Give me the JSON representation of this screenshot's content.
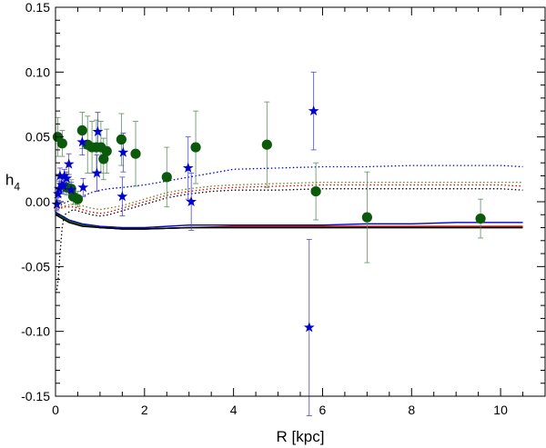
{
  "chart_data": {
    "type": "scatter",
    "title": "",
    "xlabel": "R [kpc]",
    "ylabel": {
      "main": "h",
      "sub": "4"
    },
    "xlim": [
      0,
      11
    ],
    "ylim": [
      -0.15,
      0.15
    ],
    "x_ticks": [
      0,
      2,
      4,
      6,
      8,
      10
    ],
    "x_tick_labels": [
      "0",
      "2",
      "4",
      "6",
      "8",
      "10"
    ],
    "y_ticks": [
      -0.15,
      -0.1,
      -0.05,
      0.0,
      0.05,
      0.1,
      0.15
    ],
    "y_tick_labels": [
      "-0.15",
      "-0.10",
      "-0.05",
      "0.00",
      "0.05",
      "0.10",
      "0.15"
    ],
    "grid": false,
    "colors": {
      "green": "#0b5a0b",
      "blue": "#0000cc",
      "black": "#000000",
      "red": "#cc0000",
      "olive": "#7a7a10"
    },
    "series": [
      {
        "name": "green circles",
        "marker": "circle",
        "color": "#0b5a0b",
        "points": [
          {
            "x": 0.05,
            "y": 0.05,
            "e": 0.015
          },
          {
            "x": 0.15,
            "y": 0.045,
            "e": 0.01
          },
          {
            "x": 0.25,
            "y": 0.011,
            "e": 0.006
          },
          {
            "x": 0.35,
            "y": 0.01,
            "e": 0.007
          },
          {
            "x": 0.4,
            "y": 0.004,
            "e": 0.006
          },
          {
            "x": 0.5,
            "y": 0.002,
            "e": 0.006
          },
          {
            "x": 0.6,
            "y": 0.055,
            "e": 0.014
          },
          {
            "x": 0.72,
            "y": 0.044,
            "e": 0.022
          },
          {
            "x": 0.82,
            "y": 0.042,
            "e": 0.02
          },
          {
            "x": 0.92,
            "y": 0.042,
            "e": 0.021
          },
          {
            "x": 1.02,
            "y": 0.042,
            "e": 0.02
          },
          {
            "x": 1.08,
            "y": 0.033,
            "e": 0.016
          },
          {
            "x": 1.15,
            "y": 0.039,
            "e": 0.017
          },
          {
            "x": 1.48,
            "y": 0.048,
            "e": 0.02
          },
          {
            "x": 1.8,
            "y": 0.037,
            "e": 0.025
          },
          {
            "x": 2.5,
            "y": 0.019,
            "e": 0.023
          },
          {
            "x": 3.15,
            "y": 0.042,
            "e": 0.028
          },
          {
            "x": 4.75,
            "y": 0.044,
            "e": 0.033
          },
          {
            "x": 5.85,
            "y": 0.008,
            "e": 0.022
          },
          {
            "x": 7.0,
            "y": -0.012,
            "e": 0.035
          },
          {
            "x": 9.55,
            "y": -0.013,
            "e": 0.015
          }
        ]
      },
      {
        "name": "blue stars",
        "marker": "star",
        "color": "#0000cc",
        "points": [
          {
            "x": 0.03,
            "y": -0.002,
            "e": 0.005
          },
          {
            "x": 0.06,
            "y": 0.006,
            "e": 0.005
          },
          {
            "x": 0.08,
            "y": 0.01,
            "e": 0.006
          },
          {
            "x": 0.1,
            "y": 0.02,
            "e": 0.006
          },
          {
            "x": 0.14,
            "y": 0.013,
            "e": 0.005
          },
          {
            "x": 0.18,
            "y": 0.012,
            "e": 0.006
          },
          {
            "x": 0.2,
            "y": 0.02,
            "e": 0.005
          },
          {
            "x": 0.25,
            "y": 0.018,
            "e": 0.005
          },
          {
            "x": 0.3,
            "y": 0.029,
            "e": 0.008
          },
          {
            "x": 0.35,
            "y": 0.009,
            "e": 0.006
          },
          {
            "x": 0.6,
            "y": 0.046,
            "e": 0.01
          },
          {
            "x": 0.62,
            "y": 0.011,
            "e": 0.007
          },
          {
            "x": 0.93,
            "y": 0.022,
            "e": 0.014
          },
          {
            "x": 0.95,
            "y": 0.054,
            "e": 0.015
          },
          {
            "x": 1.5,
            "y": 0.004,
            "e": 0.015
          },
          {
            "x": 1.52,
            "y": 0.038,
            "e": 0.015
          },
          {
            "x": 2.98,
            "y": 0.026,
            "e": 0.024
          },
          {
            "x": 3.05,
            "y": 0.0,
            "e": 0.022
          },
          {
            "x": 5.8,
            "y": 0.07,
            "e": 0.03
          },
          {
            "x": 5.7,
            "y": -0.097,
            "e": 0.068
          }
        ]
      }
    ],
    "model_curves": [
      {
        "name": "blue dotted",
        "style": "dotted",
        "color": "#0000cc",
        "x": [
          0.05,
          0.2,
          0.4,
          0.6,
          0.8,
          1.0,
          1.2,
          1.5,
          2.0,
          2.5,
          3.0,
          3.5,
          4.0,
          5.0,
          6.0,
          7.0,
          8.0,
          9.0,
          10.0,
          10.5
        ],
        "y": [
          -0.004,
          -0.001,
          0.002,
          0.004,
          0.007,
          0.009,
          0.01,
          0.011,
          0.013,
          0.016,
          0.019,
          0.022,
          0.025,
          0.026,
          0.027,
          0.027,
          0.028,
          0.028,
          0.028,
          0.027
        ]
      },
      {
        "name": "olive dotted",
        "style": "dotted",
        "color": "#7a7a10",
        "x": [
          0.05,
          0.2,
          0.4,
          0.6,
          0.8,
          1.0,
          1.2,
          1.5,
          2.0,
          2.5,
          3.0,
          3.5,
          4.0,
          5.0,
          6.0,
          7.0,
          8.0,
          9.0,
          10.0,
          10.5
        ],
        "y": [
          -0.005,
          -0.003,
          -0.002,
          -0.003,
          -0.005,
          -0.006,
          -0.005,
          -0.003,
          0.002,
          0.007,
          0.01,
          0.012,
          0.013,
          0.014,
          0.015,
          0.015,
          0.015,
          0.015,
          0.015,
          0.015
        ]
      },
      {
        "name": "red dotted",
        "style": "dotted",
        "color": "#cc0000",
        "x": [
          0.05,
          0.2,
          0.4,
          0.6,
          0.8,
          1.0,
          1.2,
          1.5,
          2.0,
          2.5,
          3.0,
          3.5,
          4.0,
          5.0,
          6.0,
          7.0,
          8.0,
          9.0,
          10.0,
          10.5
        ],
        "y": [
          -0.006,
          -0.004,
          -0.004,
          -0.006,
          -0.008,
          -0.009,
          -0.008,
          -0.005,
          0.0,
          0.005,
          0.008,
          0.01,
          0.011,
          0.012,
          0.013,
          0.013,
          0.013,
          0.013,
          0.013,
          0.012
        ]
      },
      {
        "name": "black dotted",
        "style": "dotted",
        "color": "#000000",
        "x": [
          0.03,
          0.06,
          0.1,
          0.15,
          0.2,
          0.4,
          0.6,
          0.8,
          1.0,
          1.2,
          1.5,
          2.0,
          2.5,
          3.0,
          3.5,
          4.0,
          5.0,
          6.0,
          7.0,
          8.0,
          9.0,
          10.0,
          10.5
        ],
        "y": [
          -0.068,
          -0.06,
          -0.04,
          -0.02,
          -0.01,
          -0.006,
          -0.008,
          -0.01,
          -0.011,
          -0.01,
          -0.007,
          -0.002,
          0.003,
          0.006,
          0.008,
          0.009,
          0.009,
          0.01,
          0.01,
          0.01,
          0.01,
          0.01,
          0.009
        ]
      },
      {
        "name": "blue solid",
        "style": "solid",
        "color": "#0000cc",
        "x": [
          0.0,
          0.3,
          0.6,
          1.0,
          1.5,
          2.0,
          3.0,
          4.0,
          5.0,
          6.0,
          7.0,
          8.0,
          9.0,
          10.0,
          10.5
        ],
        "y": [
          -0.008,
          -0.014,
          -0.017,
          -0.019,
          -0.02,
          -0.02,
          -0.018,
          -0.018,
          -0.018,
          -0.018,
          -0.017,
          -0.017,
          -0.016,
          -0.016,
          -0.016
        ]
      },
      {
        "name": "red solid",
        "style": "solid",
        "color": "#cc0000",
        "x": [
          0.0,
          0.3,
          0.6,
          1.0,
          1.5,
          2.0,
          3.0,
          4.0,
          5.0,
          6.0,
          7.0,
          8.0,
          9.0,
          10.0,
          10.5
        ],
        "y": [
          -0.009,
          -0.015,
          -0.018,
          -0.02,
          -0.021,
          -0.021,
          -0.02,
          -0.019,
          -0.019,
          -0.019,
          -0.019,
          -0.019,
          -0.019,
          -0.019,
          -0.019
        ]
      },
      {
        "name": "green solid",
        "style": "solid",
        "color": "#0b5a0b",
        "x": [
          0.0,
          0.3,
          0.6,
          1.0,
          1.5,
          2.0,
          3.0,
          4.0,
          5.0,
          6.0,
          7.0,
          8.0,
          9.0,
          10.0,
          10.5
        ],
        "y": [
          -0.009,
          -0.015,
          -0.018,
          -0.02,
          -0.021,
          -0.021,
          -0.02,
          -0.02,
          -0.02,
          -0.02,
          -0.02,
          -0.02,
          -0.02,
          -0.02,
          -0.02
        ]
      },
      {
        "name": "black solid",
        "style": "solid",
        "color": "#000000",
        "x": [
          0.0,
          0.3,
          0.6,
          1.0,
          1.5,
          2.0,
          3.0,
          4.0,
          5.0,
          6.0,
          7.0,
          8.0,
          9.0,
          10.0,
          10.5
        ],
        "y": [
          -0.01,
          -0.016,
          -0.019,
          -0.02,
          -0.021,
          -0.021,
          -0.02,
          -0.02,
          -0.02,
          -0.02,
          -0.02,
          -0.02,
          -0.02,
          -0.02,
          -0.02
        ]
      }
    ]
  }
}
